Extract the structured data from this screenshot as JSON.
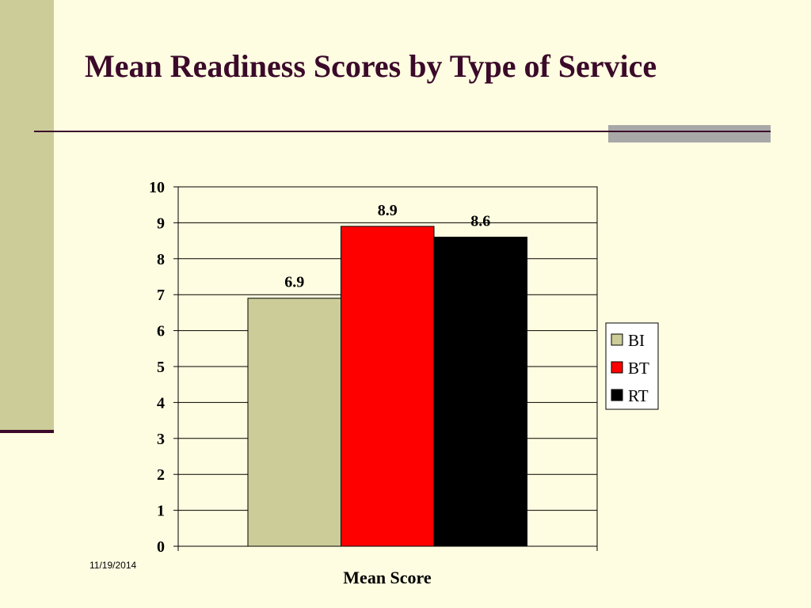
{
  "slide": {
    "title": "Mean Readiness Scores by Type of Service",
    "date": "11/19/2014"
  },
  "colors": {
    "background": "#FFFDE1",
    "accent": "#3B0A2A",
    "side_band": "#CCCC99"
  },
  "chart_data": {
    "type": "bar",
    "categories": [
      "Mean Score"
    ],
    "series": [
      {
        "name": "BI",
        "values": [
          6.9
        ],
        "color": "#CCCC99"
      },
      {
        "name": "BT",
        "values": [
          8.9
        ],
        "color": "#FF0000"
      },
      {
        "name": "RT",
        "values": [
          8.6
        ],
        "color": "#000000"
      }
    ],
    "xlabel": "Mean Score",
    "ylabel": "",
    "ylim": [
      0,
      10
    ],
    "yticks": [
      0,
      1,
      2,
      3,
      4,
      5,
      6,
      7,
      8,
      9,
      10
    ],
    "grid": true,
    "legend": "right",
    "data_labels": [
      "6.9",
      "8.9",
      "8.6"
    ]
  }
}
